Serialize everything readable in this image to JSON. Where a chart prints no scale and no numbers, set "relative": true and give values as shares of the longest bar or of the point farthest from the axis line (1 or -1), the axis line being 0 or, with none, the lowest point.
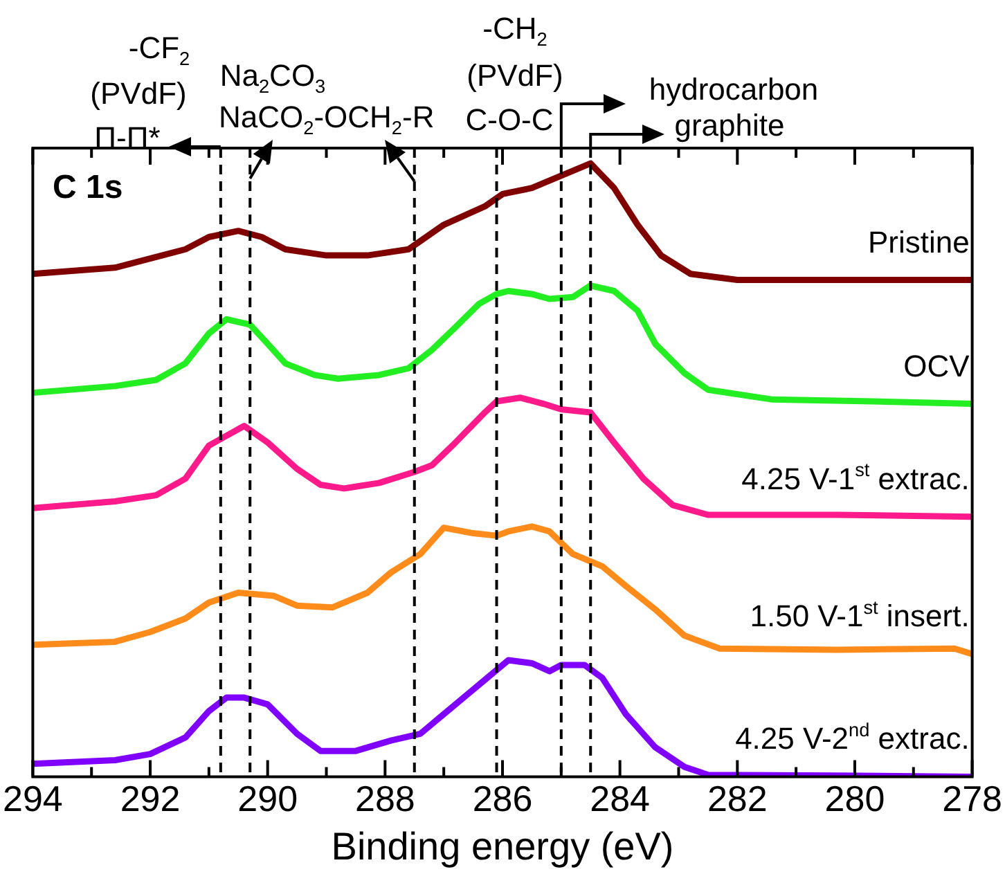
{
  "chart_data": {
    "type": "line",
    "xlabel": "Binding energy (eV)",
    "relative": true,
    "marker": "none",
    "line_style": "solid",
    "xlim": [
      294,
      278
    ],
    "xticks": [
      294,
      {
        "value": 293,
        "label": null
      },
      292,
      {
        "value": 291,
        "label": null
      },
      290,
      {
        "value": 289,
        "label": null
      },
      288,
      {
        "value": 287,
        "label": null
      },
      286,
      {
        "value": 285,
        "label": null
      },
      284,
      {
        "value": 283,
        "label": null
      },
      282,
      {
        "value": 281,
        "label": null
      },
      280,
      {
        "value": 279,
        "label": null
      },
      278
    ],
    "annotations": [
      "-CF$_{2}$",
      "(PVdF)",
      "Π-Π*",
      "Na$_{2}$CO$_{3}$",
      "NaCO$_{2}$-OCH$_{2}$-R",
      "-CH$_{2}$",
      "(PVdF)",
      "C-O-C",
      "hydrocarbon",
      "graphite",
      "C 1s"
    ],
    "ref_lines": [
      {
        "axis": "x",
        "value": 290.8,
        "line_style": "dashed"
      },
      {
        "axis": "x",
        "value": 290.3,
        "line_style": "dashed"
      },
      {
        "axis": "x",
        "value": 287.5,
        "line_style": "dashed"
      },
      {
        "axis": "x",
        "value": 286.1,
        "line_style": "dashed"
      },
      {
        "axis": "x",
        "value": 285.0,
        "line_style": "dashed"
      },
      {
        "axis": "x",
        "value": 284.5,
        "line_style": "dashed"
      }
    ],
    "series": [
      {
        "name": "Pristine",
        "color": "#800000",
        "x": [
          294.0,
          292.6,
          291.8,
          291.4,
          291.0,
          290.5,
          290.1,
          289.7,
          289.0,
          288.3,
          287.6,
          287.0,
          286.3,
          286.0,
          285.5,
          285.0,
          284.5,
          284.4,
          284.1,
          283.7,
          283.3,
          282.8,
          282.0,
          280.3,
          278.0
        ],
        "values": [
          0.82,
          0.83,
          0.85,
          0.86,
          0.88,
          0.89,
          0.88,
          0.86,
          0.85,
          0.85,
          0.86,
          0.9,
          0.93,
          0.95,
          0.96,
          0.98,
          1.0,
          0.99,
          0.96,
          0.9,
          0.85,
          0.82,
          0.81,
          0.81,
          0.81
        ]
      },
      {
        "name": "OCV",
        "color": "#22ee22",
        "x": [
          294.0,
          292.6,
          291.9,
          291.4,
          291.0,
          290.7,
          290.3,
          290.0,
          289.7,
          289.2,
          288.8,
          288.1,
          287.6,
          287.2,
          286.8,
          286.4,
          286.1,
          285.9,
          285.5,
          285.2,
          284.8,
          284.5,
          284.1,
          283.7,
          283.4,
          282.9,
          282.5,
          281.4,
          279.7,
          278.0
        ],
        "values": [
          0.626,
          0.637,
          0.647,
          0.674,
          0.723,
          0.746,
          0.737,
          0.706,
          0.674,
          0.655,
          0.649,
          0.655,
          0.666,
          0.696,
          0.733,
          0.771,
          0.787,
          0.792,
          0.787,
          0.779,
          0.782,
          0.801,
          0.792,
          0.76,
          0.706,
          0.658,
          0.631,
          0.615,
          0.612,
          0.608
        ]
      },
      {
        "name": "4.25 V-1$^{st}$ extrac.",
        "color": "#ff1a8c",
        "x": [
          294.0,
          292.6,
          291.9,
          291.4,
          291.0,
          290.7,
          290.4,
          290.0,
          289.5,
          289.1,
          288.7,
          288.1,
          287.5,
          287.2,
          286.8,
          286.3,
          286.1,
          285.7,
          285.3,
          285.0,
          284.5,
          284.1,
          283.6,
          283.1,
          282.5,
          280.3,
          278.0
        ],
        "values": [
          0.438,
          0.449,
          0.459,
          0.486,
          0.54,
          0.556,
          0.572,
          0.545,
          0.502,
          0.476,
          0.47,
          0.479,
          0.497,
          0.508,
          0.545,
          0.594,
          0.612,
          0.618,
          0.608,
          0.599,
          0.594,
          0.545,
          0.486,
          0.443,
          0.427,
          0.427,
          0.424
        ]
      },
      {
        "name": "1.50 V-1$^{st}$ insert.",
        "color": "#ff8c1a",
        "x": [
          294.0,
          292.6,
          292.0,
          291.4,
          291.0,
          290.5,
          289.9,
          289.5,
          288.9,
          288.3,
          287.9,
          287.4,
          287.0,
          286.5,
          286.1,
          285.9,
          285.5,
          285.2,
          284.8,
          284.3,
          283.9,
          283.4,
          282.9,
          282.3,
          280.3,
          278.3,
          278.0
        ],
        "values": [
          0.215,
          0.22,
          0.236,
          0.258,
          0.284,
          0.3,
          0.295,
          0.279,
          0.276,
          0.3,
          0.333,
          0.363,
          0.406,
          0.397,
          0.393,
          0.4,
          0.408,
          0.4,
          0.363,
          0.343,
          0.311,
          0.273,
          0.23,
          0.209,
          0.207,
          0.209,
          0.2
        ]
      },
      {
        "name": "4.25 V-2$^{nd}$ extrac.",
        "color": "#8000ff",
        "x": [
          294.0,
          292.6,
          292.0,
          291.4,
          291.0,
          290.7,
          290.4,
          290.0,
          289.5,
          289.1,
          288.5,
          287.9,
          287.4,
          287.0,
          286.4,
          285.9,
          285.5,
          285.2,
          285.0,
          284.6,
          284.3,
          283.9,
          283.4,
          282.9,
          282.5,
          280.3,
          278.0
        ],
        "values": [
          0.021,
          0.027,
          0.037,
          0.064,
          0.107,
          0.129,
          0.129,
          0.118,
          0.07,
          0.042,
          0.042,
          0.059,
          0.07,
          0.102,
          0.15,
          0.19,
          0.185,
          0.172,
          0.182,
          0.182,
          0.161,
          0.102,
          0.048,
          0.016,
          0.003,
          0.002,
          0.0
        ]
      }
    ]
  }
}
